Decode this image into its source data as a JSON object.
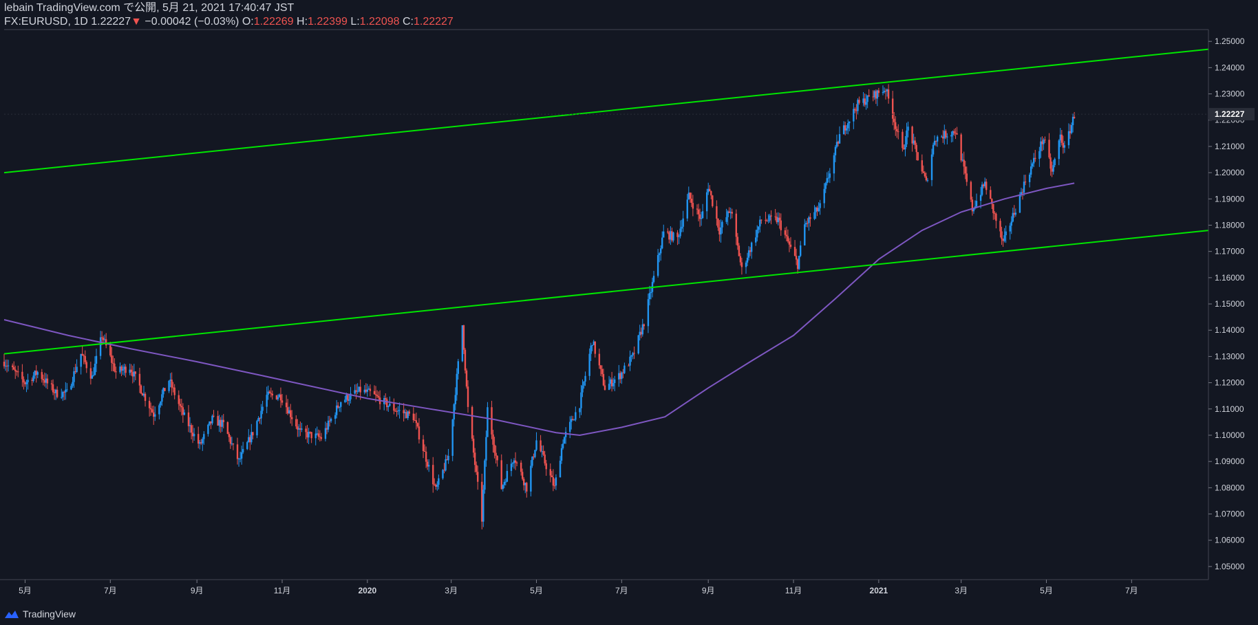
{
  "header": {
    "publisher": "lebain TradingView.com で公開, 5月 21, 2021 17:40:47 JST",
    "symbol_tf": "FX:EURUSD, 1D",
    "last": "1.22227",
    "change_arrow": "▼",
    "change": "−0.00042 (−0.03%)",
    "o_label": "O:",
    "o_value": "1.22269",
    "h_label": "H:",
    "h_value": "1.22399",
    "l_label": "L:",
    "l_value": "1.22098",
    "c_label": "C:",
    "c_value": "1.22227"
  },
  "brand": {
    "label": "TradingView",
    "icon": "tradingview-logo-icon"
  },
  "colors": {
    "background": "#131722",
    "up": "#2196f3",
    "down": "#ef5350",
    "channel": "#00e600",
    "ma": "#7e57c2",
    "text": "#d1d4dc",
    "axis": "#787b86"
  },
  "chart_data": {
    "type": "candlestick",
    "symbol": "FX:EURUSD",
    "timeframe": "1D",
    "x_range": [
      "2019-04-16",
      "2021-08-25"
    ],
    "ylim": [
      1.045,
      1.2545
    ],
    "y_ticks": [
      "1.05000",
      "1.06000",
      "1.07000",
      "1.08000",
      "1.09000",
      "1.10000",
      "1.11000",
      "1.12000",
      "1.13000",
      "1.14000",
      "1.15000",
      "1.16000",
      "1.17000",
      "1.18000",
      "1.19000",
      "1.20000",
      "1.21000",
      "1.22000",
      "1.23000",
      "1.24000",
      "1.25000"
    ],
    "x_ticks": [
      {
        "date": "2019-05-01",
        "label": "5月"
      },
      {
        "date": "2019-07-01",
        "label": "7月"
      },
      {
        "date": "2019-09-01",
        "label": "9月"
      },
      {
        "date": "2019-11-01",
        "label": "11月"
      },
      {
        "date": "2020-01-01",
        "label": "2020"
      },
      {
        "date": "2020-03-01",
        "label": "3月"
      },
      {
        "date": "2020-05-01",
        "label": "5月"
      },
      {
        "date": "2020-07-01",
        "label": "7月"
      },
      {
        "date": "2020-09-01",
        "label": "9月"
      },
      {
        "date": "2020-11-01",
        "label": "11月"
      },
      {
        "date": "2021-01-01",
        "label": "2021"
      },
      {
        "date": "2021-03-01",
        "label": "3月"
      },
      {
        "date": "2021-05-01",
        "label": "5月"
      },
      {
        "date": "2021-07-01",
        "label": "7月"
      }
    ],
    "last_price": {
      "value": 1.22227,
      "label": "1.22227"
    },
    "close_path": [
      [
        "2019-04-16",
        1.128
      ],
      [
        "2019-05-01",
        1.12
      ],
      [
        "2019-05-10",
        1.124
      ],
      [
        "2019-05-23",
        1.116
      ],
      [
        "2019-05-31",
        1.116
      ],
      [
        "2019-06-10",
        1.131
      ],
      [
        "2019-06-18",
        1.122
      ],
      [
        "2019-06-25",
        1.138
      ],
      [
        "2019-07-05",
        1.124
      ],
      [
        "2019-07-15",
        1.126
      ],
      [
        "2019-08-01",
        1.108
      ],
      [
        "2019-08-12",
        1.121
      ],
      [
        "2019-08-22",
        1.108
      ],
      [
        "2019-09-03",
        1.096
      ],
      [
        "2019-09-12",
        1.106
      ],
      [
        "2019-09-20",
        1.104
      ],
      [
        "2019-10-01",
        1.09
      ],
      [
        "2019-10-11",
        1.101
      ],
      [
        "2019-10-21",
        1.115
      ],
      [
        "2019-10-31",
        1.115
      ],
      [
        "2019-11-14",
        1.101
      ],
      [
        "2019-11-29",
        1.099
      ],
      [
        "2019-12-13",
        1.113
      ],
      [
        "2019-12-27",
        1.117
      ],
      [
        "2020-01-03",
        1.116
      ],
      [
        "2020-01-20",
        1.11
      ],
      [
        "2020-02-03",
        1.107
      ],
      [
        "2020-02-19",
        1.079
      ],
      [
        "2020-02-28",
        1.092
      ],
      [
        "2020-03-09",
        1.142
      ],
      [
        "2020-03-13",
        1.11
      ],
      [
        "2020-03-23",
        1.068
      ],
      [
        "2020-03-27",
        1.11
      ],
      [
        "2020-04-06",
        1.08
      ],
      [
        "2020-04-15",
        1.092
      ],
      [
        "2020-04-24",
        1.08
      ],
      [
        "2020-05-01",
        1.098
      ],
      [
        "2020-05-14",
        1.08
      ],
      [
        "2020-05-20",
        1.098
      ],
      [
        "2020-06-01",
        1.112
      ],
      [
        "2020-06-10",
        1.136
      ],
      [
        "2020-06-19",
        1.118
      ],
      [
        "2020-06-30",
        1.123
      ],
      [
        "2020-07-09",
        1.13
      ],
      [
        "2020-07-17",
        1.143
      ],
      [
        "2020-07-31",
        1.177
      ],
      [
        "2020-08-10",
        1.175
      ],
      [
        "2020-08-18",
        1.191
      ],
      [
        "2020-08-27",
        1.182
      ],
      [
        "2020-09-01",
        1.195
      ],
      [
        "2020-09-09",
        1.178
      ],
      [
        "2020-09-17",
        1.186
      ],
      [
        "2020-09-25",
        1.163
      ],
      [
        "2020-10-09",
        1.182
      ],
      [
        "2020-10-21",
        1.182
      ],
      [
        "2020-11-04",
        1.165
      ],
      [
        "2020-11-09",
        1.18
      ],
      [
        "2020-11-20",
        1.187
      ],
      [
        "2020-12-04",
        1.214
      ],
      [
        "2020-12-17",
        1.226
      ],
      [
        "2021-01-06",
        1.232
      ],
      [
        "2021-01-18",
        1.208
      ],
      [
        "2021-01-22",
        1.217
      ],
      [
        "2021-02-04",
        1.196
      ],
      [
        "2021-02-10",
        1.213
      ],
      [
        "2021-02-25",
        1.216
      ],
      [
        "2021-03-09",
        1.186
      ],
      [
        "2021-03-18",
        1.196
      ],
      [
        "2021-03-31",
        1.173
      ],
      [
        "2021-04-16",
        1.197
      ],
      [
        "2021-04-29",
        1.213
      ],
      [
        "2021-05-05",
        1.2
      ],
      [
        "2021-05-11",
        1.214
      ],
      [
        "2021-05-14",
        1.209
      ],
      [
        "2021-05-21",
        1.222
      ]
    ],
    "ma_line": [
      [
        "2019-04-16",
        1.144
      ],
      [
        "2019-06-01",
        1.138
      ],
      [
        "2019-07-15",
        1.133
      ],
      [
        "2019-09-01",
        1.128
      ],
      [
        "2019-10-15",
        1.123
      ],
      [
        "2020-01-01",
        1.114
      ],
      [
        "2020-02-15",
        1.11
      ],
      [
        "2020-04-01",
        1.106
      ],
      [
        "2020-05-15",
        1.101
      ],
      [
        "2020-06-01",
        1.1
      ],
      [
        "2020-07-01",
        1.103
      ],
      [
        "2020-08-01",
        1.107
      ],
      [
        "2020-09-01",
        1.118
      ],
      [
        "2020-10-01",
        1.128
      ],
      [
        "2020-11-01",
        1.138
      ],
      [
        "2020-12-01",
        1.152
      ],
      [
        "2021-01-01",
        1.167
      ],
      [
        "2021-02-01",
        1.178
      ],
      [
        "2021-03-01",
        1.185
      ],
      [
        "2021-04-01",
        1.19
      ],
      [
        "2021-05-01",
        1.194
      ],
      [
        "2021-05-21",
        1.196
      ]
    ],
    "trendlines": [
      {
        "name": "upper-channel",
        "from": [
          "2019-04-16",
          1.2
        ],
        "to": [
          "2021-08-25",
          1.247
        ]
      },
      {
        "name": "lower-channel",
        "from": [
          "2019-04-16",
          1.131
        ],
        "to": [
          "2021-08-25",
          1.178
        ]
      }
    ]
  }
}
